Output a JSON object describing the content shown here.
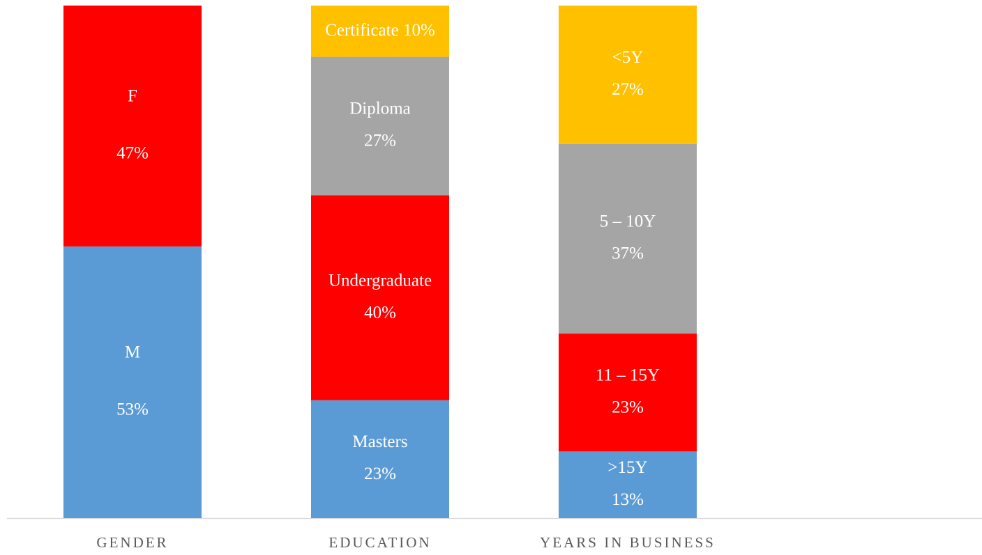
{
  "chart_data": {
    "type": "stacked_bar_100",
    "ylim": [
      0,
      100
    ],
    "stacks": [
      {
        "category": "GENDER",
        "segments": [
          {
            "name": "M",
            "value": 53,
            "value_label": "53%",
            "color": "#5b9bd5"
          },
          {
            "name": "F",
            "value": 47,
            "value_label": "47%",
            "color": "#ff0000"
          }
        ]
      },
      {
        "category": "EDUCATION",
        "segments": [
          {
            "name": "Masters",
            "value": 23,
            "value_label": "23%",
            "color": "#5b9bd5"
          },
          {
            "name": "Undergraduate",
            "value": 40,
            "value_label": "40%",
            "color": "#ff0000"
          },
          {
            "name": "Diploma",
            "value": 27,
            "value_label": "27%",
            "color": "#a5a5a5"
          },
          {
            "name": "Certificate",
            "value": 10,
            "value_label": "10%",
            "color": "#ffc000"
          }
        ]
      },
      {
        "category": "YEARS IN BUSINESS",
        "segments": [
          {
            "name": ">15Y",
            "value": 13,
            "value_label": "13%",
            "color": "#5b9bd5"
          },
          {
            "name": "11 – 15Y",
            "value": 23,
            "value_label": "23%",
            "color": "#ff0000"
          },
          {
            "name": "5 – 10Y",
            "value": 37,
            "value_label": "37%",
            "color": "#a5a5a5"
          },
          {
            "name": "<5Y",
            "value": 27,
            "value_label": "27%",
            "color": "#ffc000"
          }
        ]
      }
    ]
  }
}
